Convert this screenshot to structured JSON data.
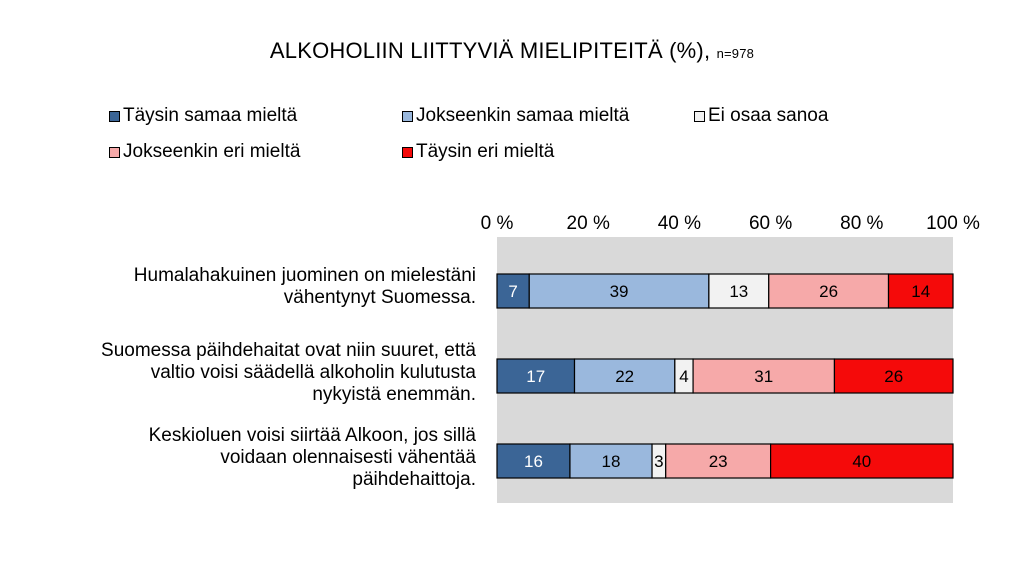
{
  "chart_data": {
    "type": "bar",
    "orientation": "horizontal",
    "stacked": "percent",
    "title": "ALKOHOLIIN LIITTYVIÄ MIELIPITEITÄ (%),",
    "subtitle": "n=978",
    "xlim": [
      0,
      100
    ],
    "x_ticks": [
      "0 %",
      "20 %",
      "40 %",
      "60 %",
      "80 %",
      "100 %"
    ],
    "x_tick_position": "top",
    "legend_position": "top",
    "categories": [
      [
        "Humalahakuinen juominen on mielestäni",
        "vähentynyt Suomessa."
      ],
      [
        "Suomessa päihdehaitat ovat niin suuret, että",
        "valtio voisi säädellä alkoholin kulutusta",
        "nykyistä enemmän."
      ],
      [
        "Keskioluen voisi siirtää Alkoon, jos sillä",
        "voidaan olennaisesti vähentää",
        "päihdehaittoja."
      ]
    ],
    "series": [
      {
        "name": "Täysin samaa mieltä",
        "color": "#3b6596",
        "label_color": "#ffffff",
        "values": [
          7,
          17,
          16
        ]
      },
      {
        "name": "Jokseenkin samaa mieltä",
        "color": "#9ab8dd",
        "label_color": "#000000",
        "values": [
          39,
          22,
          18
        ]
      },
      {
        "name": "Ei osaa sanoa",
        "color": "#f2f2f2",
        "label_color": "#000000",
        "values": [
          13,
          4,
          3
        ]
      },
      {
        "name": "Jokseenkin eri mieltä",
        "color": "#f6a9a9",
        "label_color": "#000000",
        "values": [
          26,
          31,
          23
        ]
      },
      {
        "name": "Täysin eri mieltä",
        "color": "#f50a0a",
        "label_color": "#000000",
        "values": [
          14,
          26,
          40
        ]
      }
    ],
    "plot_background": "#d9d9d9"
  }
}
